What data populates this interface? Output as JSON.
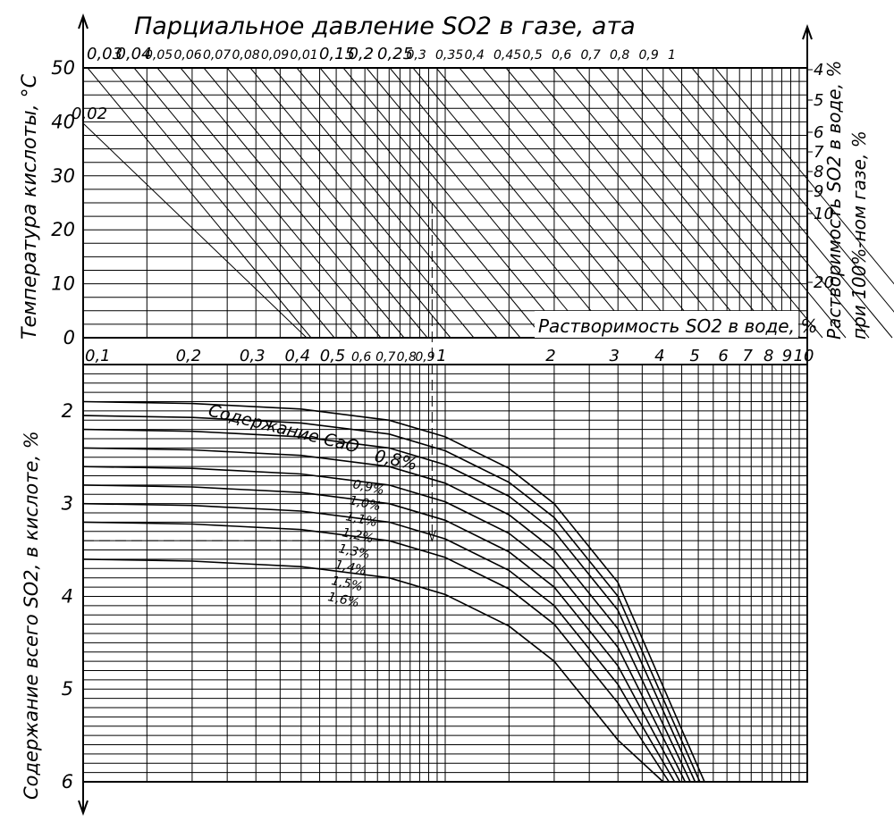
{
  "chart_data": {
    "type": "nomogram",
    "title": "Парциальное давление SO2 в газе, ата",
    "top_scale": {
      "label": "Парциальное давление SO2 в газе, ата",
      "ticks": [
        "0,03",
        "0,04",
        "0,05",
        "0,06",
        "0,07",
        "0,08",
        "0,09",
        "0,01",
        "0,15",
        "0,2",
        "0,25",
        "0,3",
        "0,35",
        "0,4",
        "0,45",
        "0,5",
        "0,6",
        "0,7",
        "0,8",
        "0,9",
        "1"
      ],
      "extra_tick": "0,02"
    },
    "left_top_axis": {
      "label": "Температура кислоты, °C",
      "ticks": [
        "0",
        "10",
        "20",
        "30",
        "40",
        "50"
      ],
      "range": [
        0,
        50
      ]
    },
    "right_axis": {
      "label_line1": "Растворимость SO2 в воде, %",
      "label_line2": "при 100%-ном газе, %",
      "ticks": [
        "4",
        "5",
        "6",
        "7",
        "8",
        "9",
        "10",
        "20"
      ]
    },
    "middle_axis": {
      "label": "Растворимость SO2 в воде, %",
      "ticks": [
        "0,1",
        "0,2",
        "0,3",
        "0,4",
        "0,5",
        "0,6",
        "0,7",
        "0,8",
        "0,9",
        "1",
        "2",
        "3",
        "4",
        "5",
        "6",
        "7",
        "8",
        "9",
        "10"
      ],
      "scale": "log",
      "range": [
        0.1,
        10
      ]
    },
    "left_bottom_axis": {
      "label": "Содержание всего SO2, в кислоте, %",
      "ticks": [
        "2",
        "3",
        "4",
        "5",
        "6"
      ],
      "range": [
        1.5,
        6
      ]
    },
    "curves_label": "Содержание CaO",
    "series": [
      {
        "name": "0,8%",
        "y0": 1.9,
        "solubility_at_6": 5.2
      },
      {
        "name": "0,9%",
        "y0": 2.05,
        "solubility_at_6": 5.05
      },
      {
        "name": "1,0%",
        "y0": 2.2,
        "solubility_at_6": 4.9
      },
      {
        "name": "1,1%",
        "y0": 2.4,
        "solubility_at_6": 4.75
      },
      {
        "name": "1,2%",
        "y0": 2.6,
        "solubility_at_6": 4.6
      },
      {
        "name": "1,3%",
        "y0": 2.8,
        "solubility_at_6": 4.45
      },
      {
        "name": "1,4%",
        "y0": 3.0,
        "solubility_at_6": 4.3
      },
      {
        "name": "1,5%",
        "y0": 3.2,
        "solubility_at_6": 4.15
      },
      {
        "name": "1,6%",
        "y0": 3.6,
        "solubility_at_6": 4.0
      }
    ],
    "example": {
      "temperature": 25,
      "solubility": 0.92,
      "total_so2": 3.4
    },
    "grid": true
  }
}
